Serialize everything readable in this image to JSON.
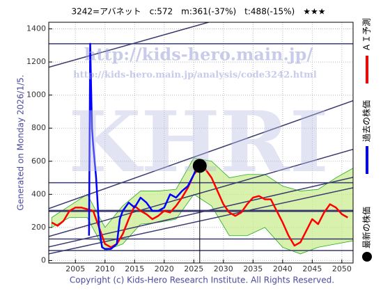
{
  "chart_data": {
    "type": "line",
    "title": "3242=アバネット　c:572　m:361(-37%)　t:488(-15%)　★★★",
    "side_label": "Generated on Monday 2026/1/5.",
    "footer": "Copyright (c) Kids-Hero Research Institute. All Rights Reserved.",
    "watermarks": [
      "http://kids-hero.main.jp/",
      "http://kids-hero.main.jp/analysis/code3242.html",
      "KHRI"
    ],
    "xlim": [
      2000.5,
      2051.9
    ],
    "ylim": [
      -15,
      1440
    ],
    "xticks": [
      2005,
      2010,
      2015,
      2020,
      2025,
      2030,
      2035,
      2040,
      2045,
      2050
    ],
    "yticks": [
      0,
      200,
      400,
      600,
      800,
      1000,
      1200,
      1400
    ],
    "grid": true,
    "series": [
      {
        "name": "ＡＩ予測",
        "color": "#ff0000",
        "x": [
          2001,
          2002,
          2003,
          2004,
          2005,
          2006,
          2007,
          2008,
          2009,
          2010,
          2011,
          2012,
          2013,
          2014,
          2015,
          2016,
          2017,
          2018,
          2019,
          2020,
          2021,
          2022,
          2023,
          2024,
          2025,
          2026,
          2027,
          2028,
          2029,
          2030,
          2031,
          2032,
          2033,
          2034,
          2035,
          2036,
          2037,
          2038,
          2039,
          2040,
          2041,
          2042,
          2043,
          2044,
          2045,
          2046,
          2047,
          2048,
          2049,
          2050,
          2051
        ],
        "values": [
          230,
          210,
          240,
          300,
          320,
          320,
          310,
          300,
          200,
          100,
          80,
          100,
          160,
          250,
          330,
          300,
          280,
          250,
          270,
          300,
          290,
          330,
          380,
          440,
          520,
          560,
          550,
          500,
          420,
          340,
          290,
          270,
          290,
          340,
          380,
          390,
          370,
          370,
          300,
          230,
          150,
          90,
          110,
          180,
          250,
          220,
          290,
          340,
          320,
          280,
          260
        ]
      },
      {
        "name": "過去の株価",
        "color": "#0000ff",
        "x": [
          2007.3,
          2007.5,
          2007.8,
          2008,
          2008.5,
          2009,
          2009.5,
          2010,
          2011,
          2012,
          2012.5,
          2013,
          2014,
          2015,
          2016,
          2017,
          2018,
          2019,
          2020,
          2021,
          2022,
          2023,
          2024,
          2025,
          2025.8
        ],
        "values": [
          150,
          1310,
          800,
          700,
          500,
          200,
          80,
          70,
          70,
          100,
          250,
          300,
          350,
          320,
          380,
          350,
          300,
          300,
          320,
          400,
          380,
          420,
          450,
          520,
          590
        ]
      },
      {
        "name": "最新の株価",
        "color": "#000000",
        "x": [
          2026
        ],
        "values": [
          572
        ]
      }
    ],
    "band": {
      "color": "#c8ec8c",
      "x": [
        2001,
        2004,
        2007,
        2010,
        2013,
        2016,
        2019,
        2022,
        2025,
        2028,
        2031,
        2034,
        2037,
        2040,
        2043,
        2046,
        2049,
        2052
      ],
      "upper": [
        260,
        330,
        400,
        200,
        330,
        420,
        420,
        430,
        620,
        600,
        500,
        520,
        520,
        450,
        420,
        430,
        500,
        560
      ],
      "lower": [
        200,
        260,
        260,
        60,
        100,
        220,
        230,
        250,
        400,
        330,
        150,
        150,
        200,
        80,
        40,
        80,
        100,
        120
      ]
    },
    "hlines": [
      1310,
      470,
      300,
      130,
      60
    ],
    "trend_lines": [
      {
        "x": [
          2000.5,
          2027.5
        ],
        "y": [
          1168,
          1440
        ]
      },
      {
        "x": [
          2000.5,
          2051.9
        ],
        "y": [
          314,
          966
        ]
      },
      {
        "x": [
          2000.5,
          2051.9
        ],
        "y": [
          145,
          672
        ]
      },
      {
        "x": [
          2000.5,
          2051.9
        ],
        "y": [
          82,
          503
        ]
      },
      {
        "x": [
          2000.5,
          2051.9
        ],
        "y": [
          40,
          440
        ]
      }
    ]
  }
}
